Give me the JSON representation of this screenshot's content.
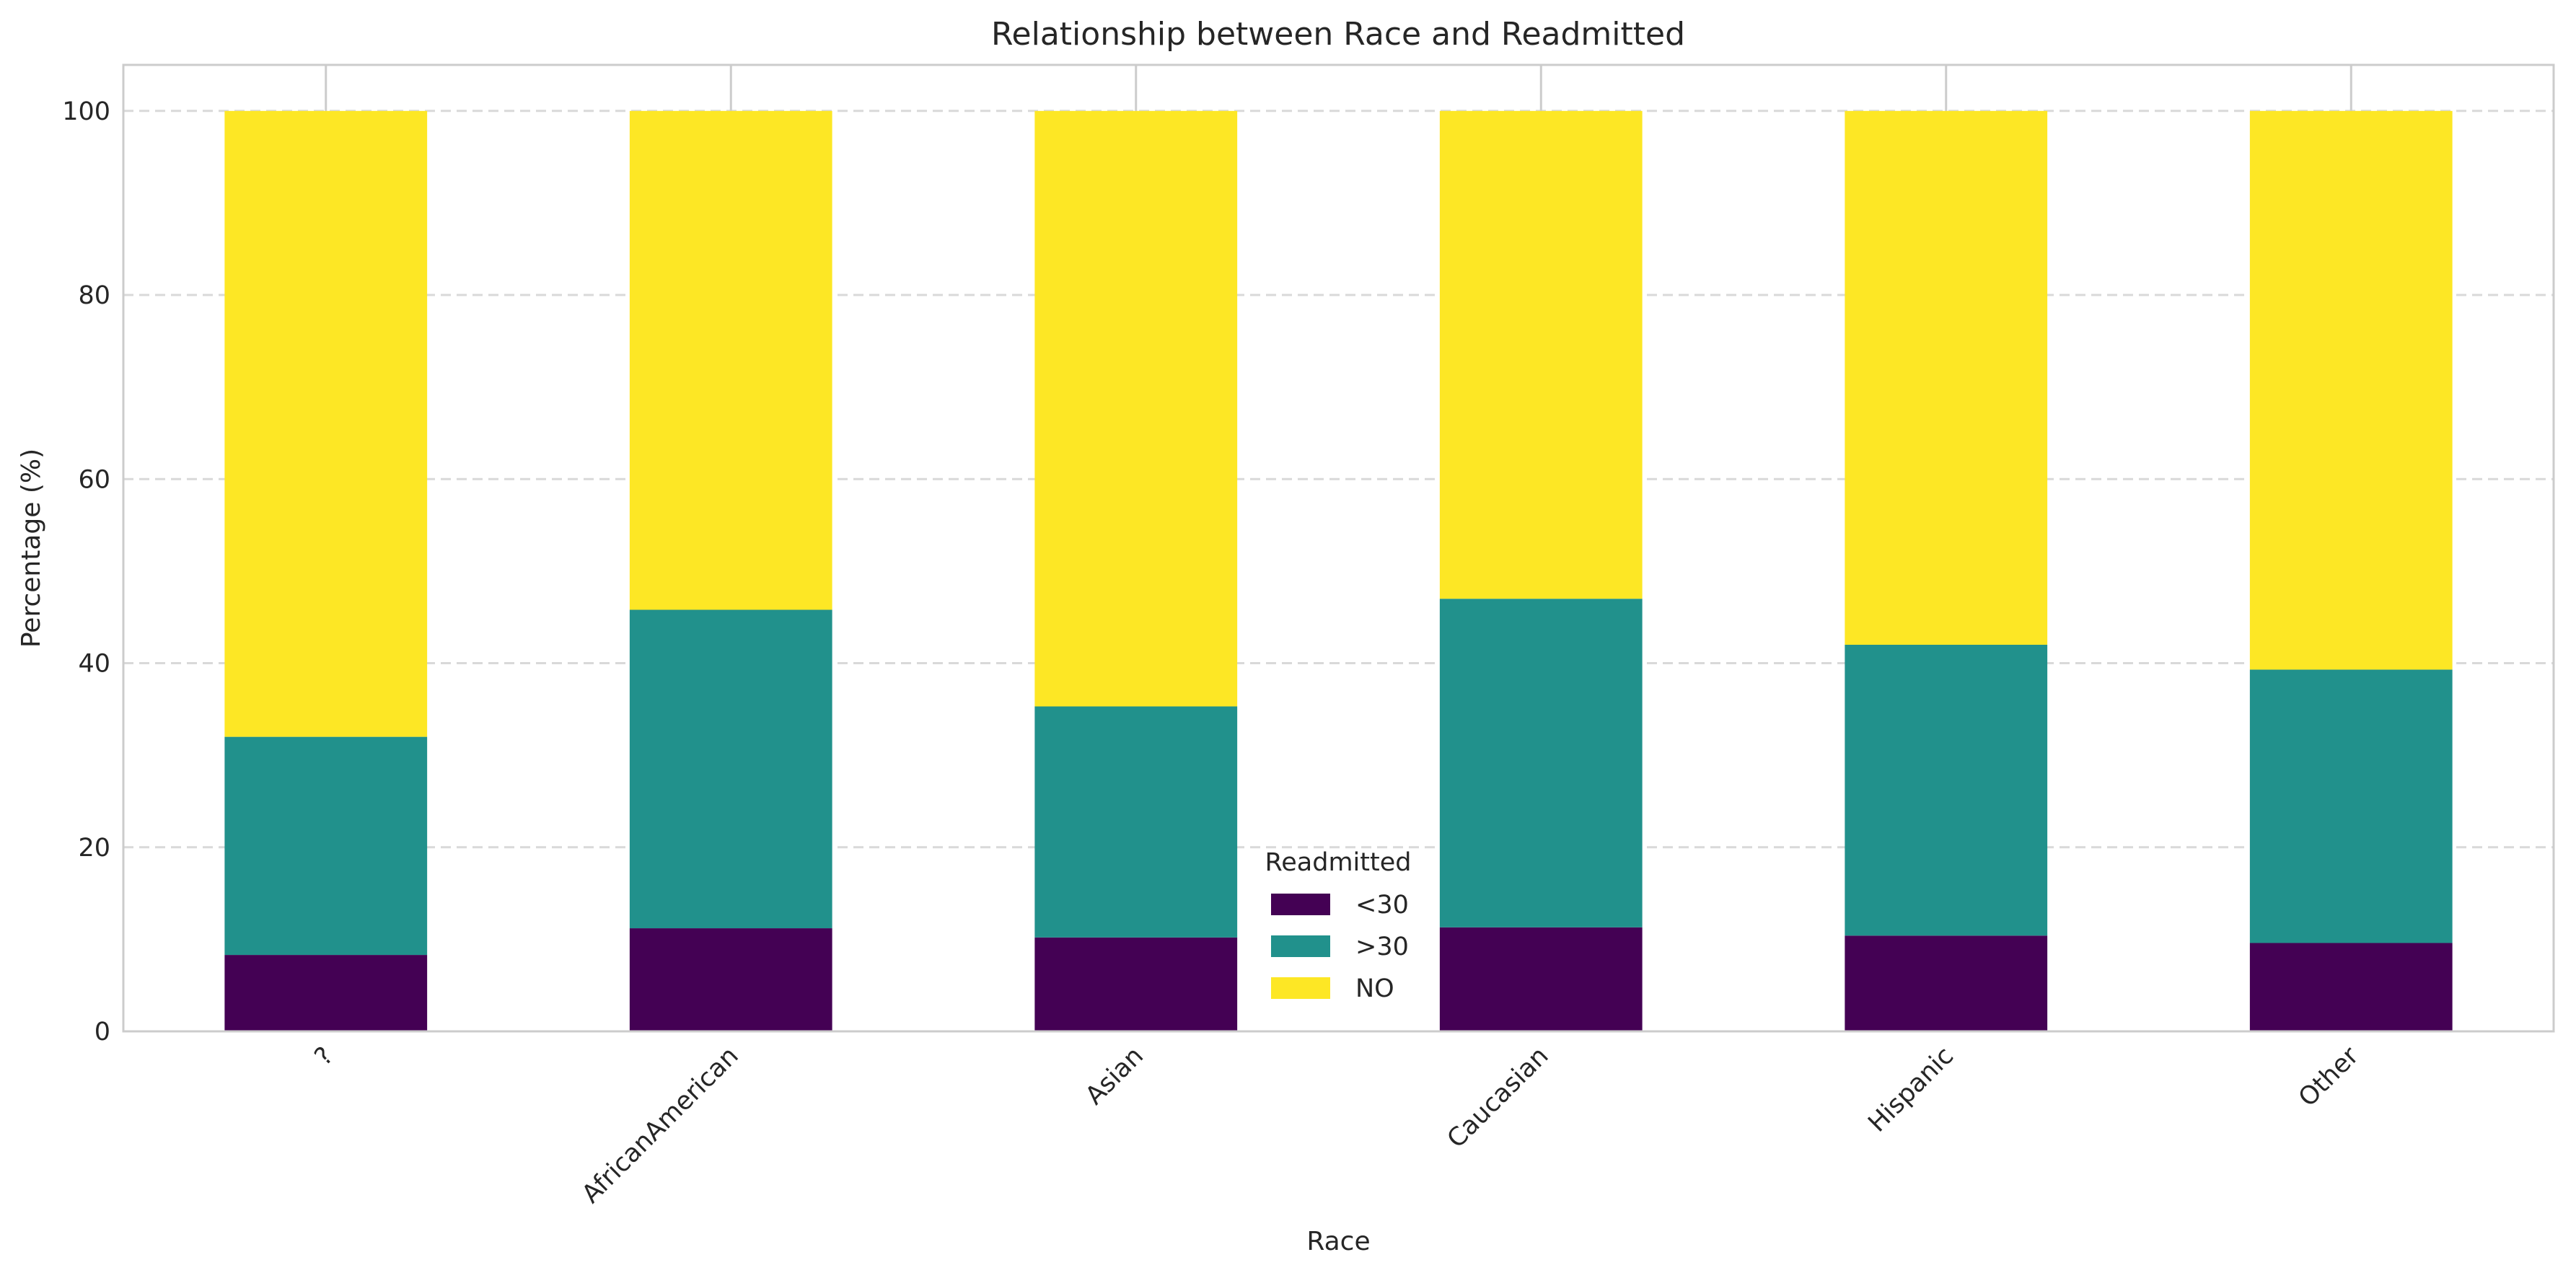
{
  "chart_data": {
    "type": "bar",
    "stacked": true,
    "title": "Relationship between Race and Readmitted",
    "xlabel": "Race",
    "ylabel": "Percentage (%)",
    "ylim": [
      0,
      105
    ],
    "yticks": [
      0,
      20,
      40,
      60,
      80,
      100
    ],
    "grid": "y-dashed",
    "legend_title": "Readmitted",
    "legend_placement": "bottom-center",
    "categories": [
      "?",
      "AfricanAmerican",
      "Asian",
      "Caucasian",
      "Hispanic",
      "Other"
    ],
    "series": [
      {
        "name": "<30",
        "color": "#440154",
        "values": [
          8.3,
          11.2,
          10.2,
          11.3,
          10.4,
          9.6
        ]
      },
      {
        "name": ">30",
        "color": "#21918c",
        "values": [
          23.7,
          34.6,
          25.1,
          35.7,
          31.6,
          29.7
        ]
      },
      {
        "name": "NO",
        "color": "#fde725",
        "values": [
          68.0,
          54.2,
          64.7,
          53.0,
          58.0,
          60.7
        ]
      }
    ]
  }
}
